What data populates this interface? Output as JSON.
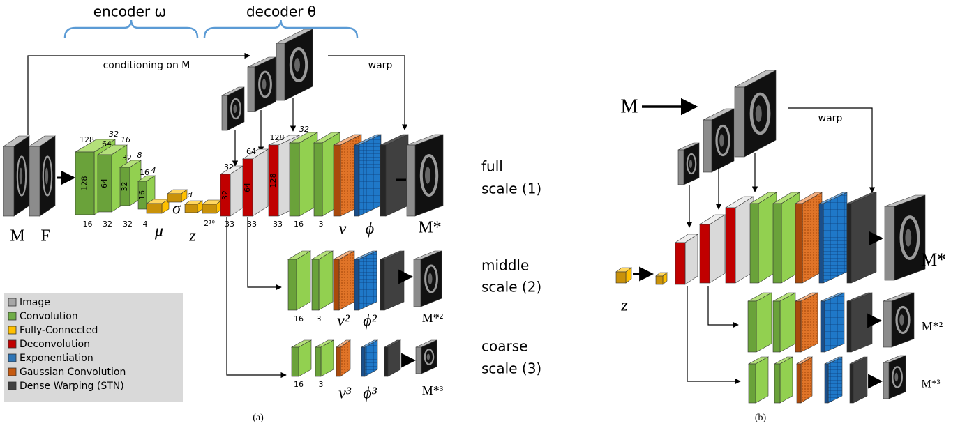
{
  "header": {
    "encoder": "encoder ω",
    "decoder": "decoder θ"
  },
  "panel_a": {
    "conditioning": "conditioning on M",
    "warp": "warp",
    "input_labels": [
      "M",
      "F"
    ],
    "encoder_top": [
      "128",
      "32",
      "64",
      "16",
      "32",
      "8",
      "16",
      "4"
    ],
    "encoder_side": [
      "128",
      "64",
      "32",
      "16"
    ],
    "encoder_bottom": [
      "16",
      "32",
      "32",
      "4"
    ],
    "latent_labels": [
      "μ",
      "σ",
      "z"
    ],
    "latent_dim": "d",
    "fc_bottom": "2¹⁰",
    "decoder_top": [
      "32",
      "64",
      "128",
      "32"
    ],
    "decoder_side": [
      "32",
      "64",
      "128"
    ],
    "decoder_bottom": [
      "33",
      "33",
      "33",
      "16",
      "3"
    ],
    "full_labels": [
      "v",
      "ϕ",
      "M*"
    ],
    "middle_bottom": [
      "16",
      "3"
    ],
    "middle_labels": [
      "v²",
      "ϕ²",
      "M*²"
    ],
    "coarse_bottom": [
      "16",
      "3"
    ],
    "coarse_labels": [
      "v³",
      "ϕ³",
      "M*³"
    ],
    "scales": [
      [
        "full",
        "scale (1)"
      ],
      [
        "middle",
        "scale (2)"
      ],
      [
        "coarse",
        "scale (3)"
      ]
    ],
    "caption": "(a)"
  },
  "legend": [
    "Image",
    "Convolution",
    "Fully-Connected",
    "Deconvolution",
    "Exponentiation",
    "Gaussian Convolution",
    "Dense Warping (STN)"
  ],
  "panel_b": {
    "input": "M",
    "warp": "warp",
    "latent": "z",
    "outputs": [
      "M*",
      "M*²",
      "M*³"
    ],
    "caption": "(b)"
  }
}
